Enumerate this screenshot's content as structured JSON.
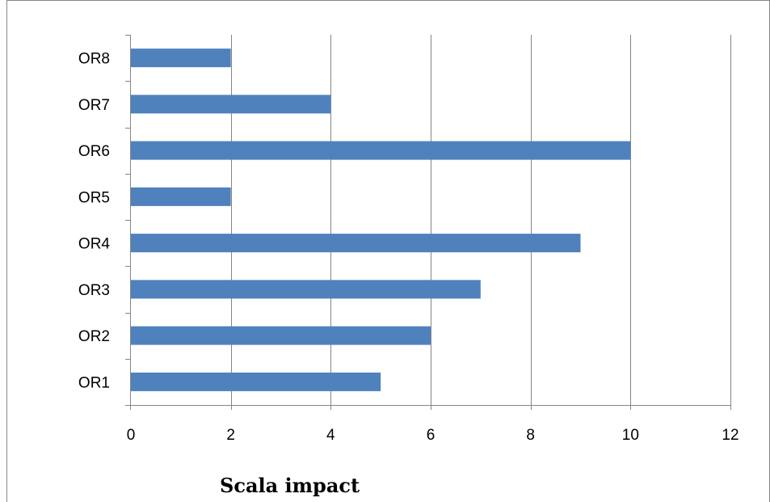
{
  "chart_data": {
    "type": "bar",
    "orientation": "horizontal",
    "categories": [
      "OR1",
      "OR2",
      "OR3",
      "OR4",
      "OR5",
      "OR6",
      "OR7",
      "OR8"
    ],
    "values": [
      5,
      6,
      7,
      9,
      2,
      10,
      4,
      2
    ],
    "xlabel": "Scala impact",
    "ylabel": "",
    "xlim": [
      0,
      12
    ],
    "x_ticks": [
      0,
      2,
      4,
      6,
      8,
      10,
      12
    ],
    "grid": "vertical",
    "legend": "none",
    "colors": {
      "bar": "#4f81bd",
      "grid": "#868686",
      "axis": "#868686",
      "frame": "#868686"
    }
  }
}
